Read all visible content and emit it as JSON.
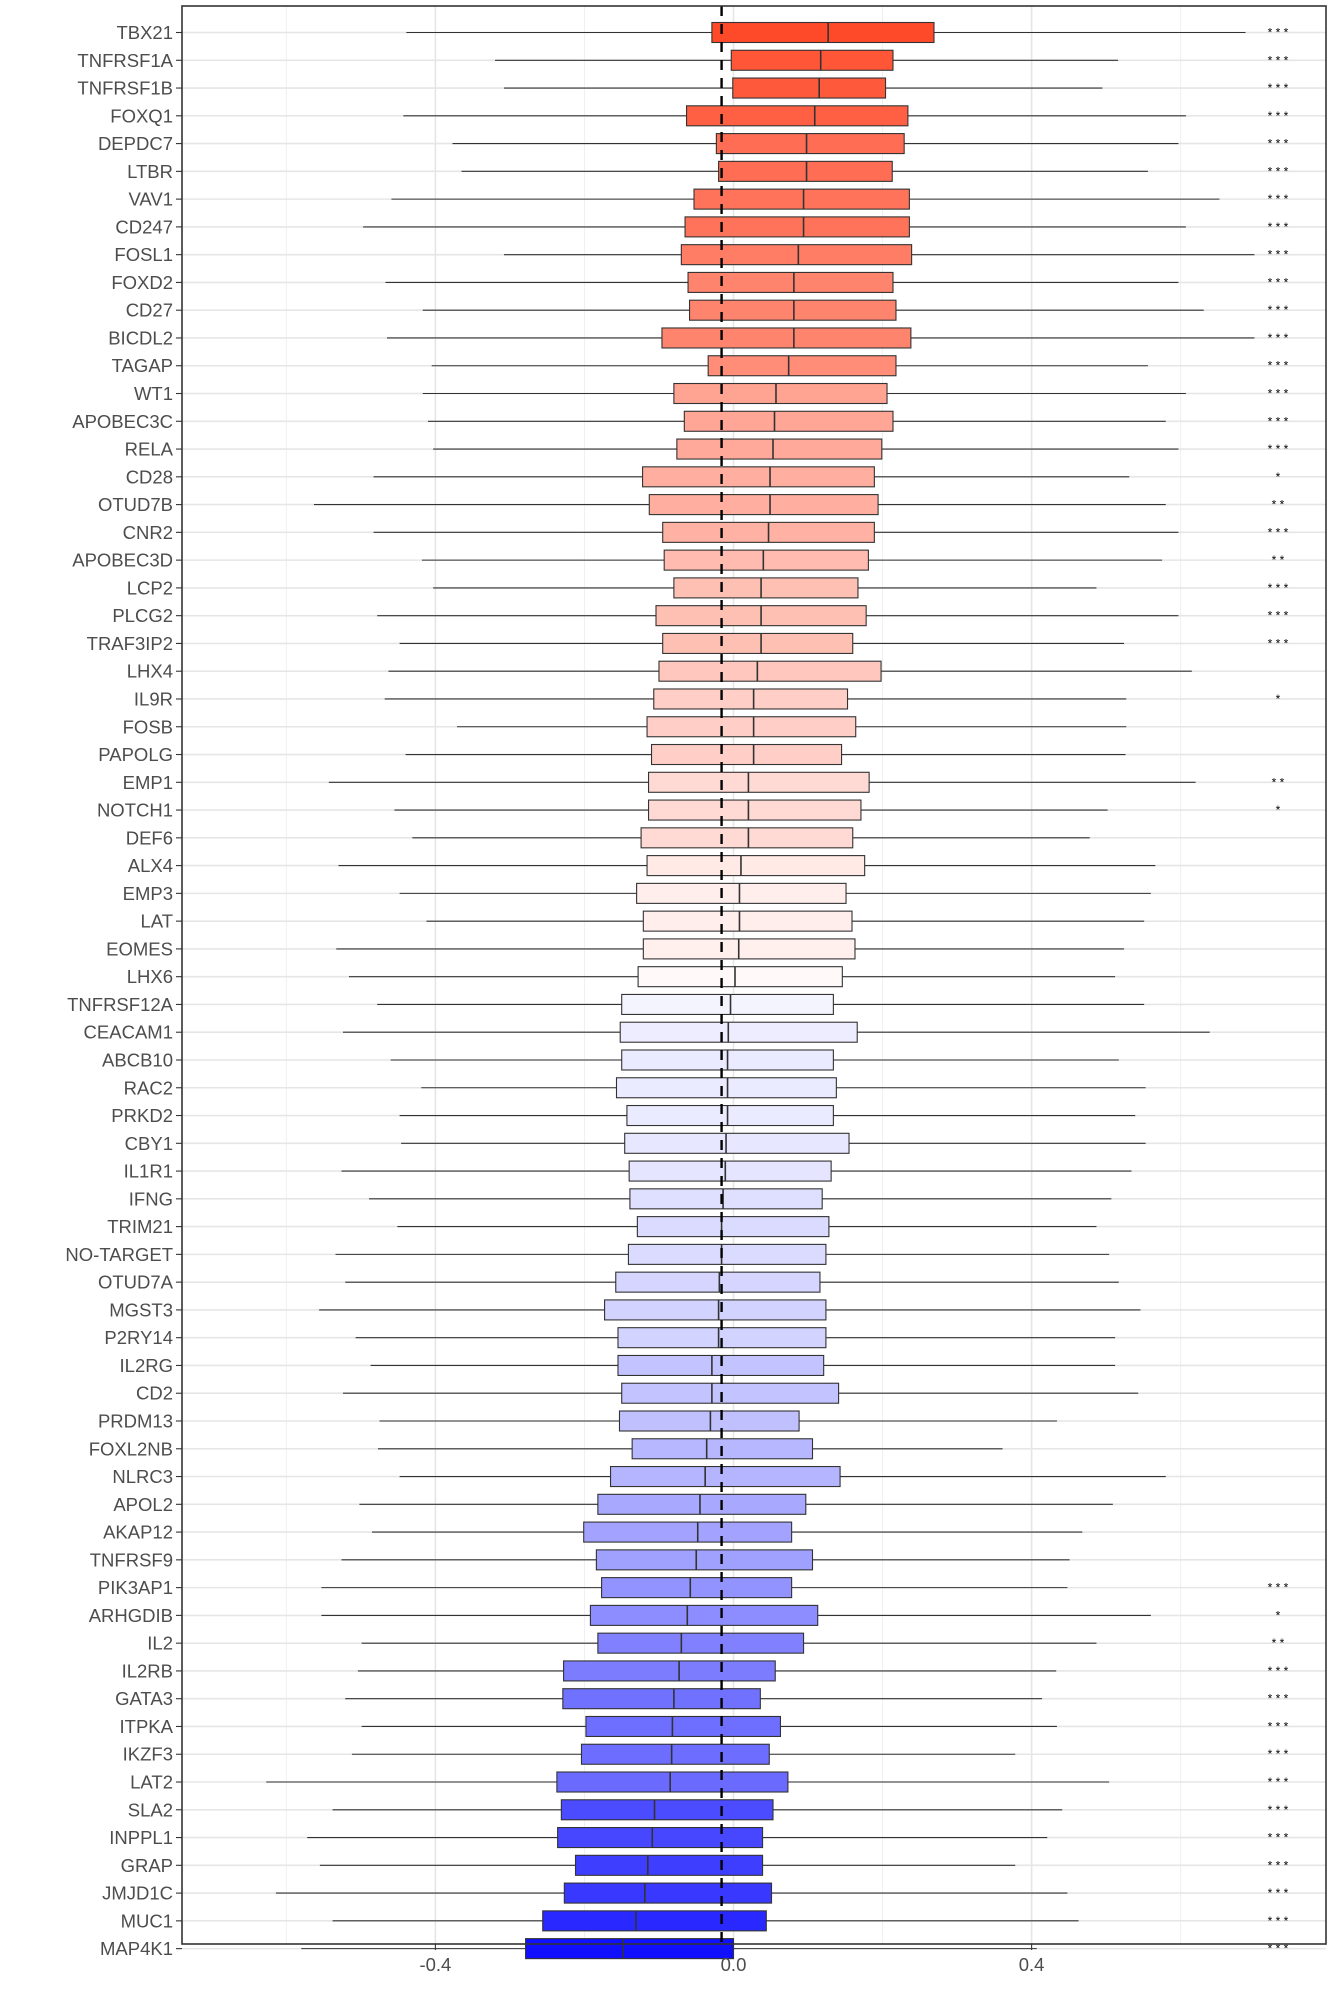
{
  "chart_data": {
    "type": "boxplot",
    "title": "",
    "xlabel": "",
    "ylabel": "",
    "xlim": [
      -0.74,
      0.795
    ],
    "xticks": [
      -0.4,
      0.0,
      0.4
    ],
    "xtick_labels": [
      "-0.4",
      "0.0",
      "0.4"
    ],
    "reference_line": -0.016,
    "grid": true,
    "color_high": "#ff4a2a",
    "color_mid": "#ffffff",
    "color_low": "#1010ff",
    "categories": [
      "TBX21",
      "TNFRSF1A",
      "TNFRSF1B",
      "FOXQ1",
      "DEPDC7",
      "LTBR",
      "VAV1",
      "CD247",
      "FOSL1",
      "FOXD2",
      "CD27",
      "BICDL2",
      "TAGAP",
      "WT1",
      "APOBEC3C",
      "RELA",
      "CD28",
      "OTUD7B",
      "CNR2",
      "APOBEC3D",
      "LCP2",
      "PLCG2",
      "TRAF3IP2",
      "LHX4",
      "IL9R",
      "FOSB",
      "PAPOLG",
      "EMP1",
      "NOTCH1",
      "DEF6",
      "ALX4",
      "EMP3",
      "LAT",
      "EOMES",
      "LHX6",
      "TNFRSF12A",
      "CEACAM1",
      "ABCB10",
      "RAC2",
      "PRKD2",
      "CBY1",
      "IL1R1",
      "IFNG",
      "TRIM21",
      "NO-TARGET",
      "OTUD7A",
      "MGST3",
      "P2RY14",
      "IL2RG",
      "CD2",
      "PRDM13",
      "FOXL2NB",
      "NLRC3",
      "APOL2",
      "AKAP12",
      "TNFRSF9",
      "PIK3AP1",
      "ARHGDIB",
      "IL2",
      "IL2RB",
      "GATA3",
      "ITPKA",
      "IKZF3",
      "LAT2",
      "SLA2",
      "INPPL1",
      "GRAP",
      "JMJD1C",
      "MUC1",
      "MAP4K1"
    ],
    "series": [
      {
        "whisker_low": -0.439,
        "q1": -0.029,
        "median": 0.127,
        "q3": 0.269,
        "whisker_high": 0.687,
        "sig": "***"
      },
      {
        "whisker_low": -0.32,
        "q1": -0.003,
        "median": 0.117,
        "q3": 0.214,
        "whisker_high": 0.516,
        "sig": "***"
      },
      {
        "whisker_low": -0.308,
        "q1": -0.001,
        "median": 0.115,
        "q3": 0.204,
        "whisker_high": 0.495,
        "sig": "***"
      },
      {
        "whisker_low": -0.443,
        "q1": -0.063,
        "median": 0.109,
        "q3": 0.234,
        "whisker_high": 0.607,
        "sig": "***"
      },
      {
        "whisker_low": -0.377,
        "q1": -0.023,
        "median": 0.098,
        "q3": 0.229,
        "whisker_high": 0.597,
        "sig": "***"
      },
      {
        "whisker_low": -0.365,
        "q1": -0.02,
        "median": 0.098,
        "q3": 0.213,
        "whisker_high": 0.556,
        "sig": "***"
      },
      {
        "whisker_low": -0.459,
        "q1": -0.053,
        "median": 0.094,
        "q3": 0.236,
        "whisker_high": 0.652,
        "sig": "***"
      },
      {
        "whisker_low": -0.497,
        "q1": -0.065,
        "median": 0.094,
        "q3": 0.236,
        "whisker_high": 0.607,
        "sig": "***"
      },
      {
        "whisker_low": -0.308,
        "q1": -0.07,
        "median": 0.087,
        "q3": 0.239,
        "whisker_high": 0.699,
        "sig": "***"
      },
      {
        "whisker_low": -0.467,
        "q1": -0.061,
        "median": 0.081,
        "q3": 0.214,
        "whisker_high": 0.597,
        "sig": "***"
      },
      {
        "whisker_low": -0.417,
        "q1": -0.059,
        "median": 0.081,
        "q3": 0.218,
        "whisker_high": 0.631,
        "sig": "***"
      },
      {
        "whisker_low": -0.465,
        "q1": -0.096,
        "median": 0.081,
        "q3": 0.238,
        "whisker_high": 0.699,
        "sig": "***"
      },
      {
        "whisker_low": -0.405,
        "q1": -0.034,
        "median": 0.074,
        "q3": 0.218,
        "whisker_high": 0.556,
        "sig": "***"
      },
      {
        "whisker_low": -0.417,
        "q1": -0.08,
        "median": 0.057,
        "q3": 0.206,
        "whisker_high": 0.607,
        "sig": "***"
      },
      {
        "whisker_low": -0.41,
        "q1": -0.066,
        "median": 0.055,
        "q3": 0.214,
        "whisker_high": 0.58,
        "sig": "***"
      },
      {
        "whisker_low": -0.403,
        "q1": -0.076,
        "median": 0.053,
        "q3": 0.199,
        "whisker_high": 0.597,
        "sig": "***"
      },
      {
        "whisker_low": -0.483,
        "q1": -0.122,
        "median": 0.049,
        "q3": 0.189,
        "whisker_high": 0.531,
        "sig": "*"
      },
      {
        "whisker_low": -0.563,
        "q1": -0.113,
        "median": 0.049,
        "q3": 0.194,
        "whisker_high": 0.58,
        "sig": "**"
      },
      {
        "whisker_low": -0.483,
        "q1": -0.095,
        "median": 0.047,
        "q3": 0.189,
        "whisker_high": 0.597,
        "sig": "***"
      },
      {
        "whisker_low": -0.418,
        "q1": -0.093,
        "median": 0.04,
        "q3": 0.181,
        "whisker_high": 0.575,
        "sig": "**"
      },
      {
        "whisker_low": -0.403,
        "q1": -0.08,
        "median": 0.037,
        "q3": 0.167,
        "whisker_high": 0.487,
        "sig": "***"
      },
      {
        "whisker_low": -0.478,
        "q1": -0.104,
        "median": 0.037,
        "q3": 0.178,
        "whisker_high": 0.597,
        "sig": "***"
      },
      {
        "whisker_low": -0.448,
        "q1": -0.095,
        "median": 0.037,
        "q3": 0.16,
        "whisker_high": 0.524,
        "sig": "***"
      },
      {
        "whisker_low": -0.463,
        "q1": -0.1,
        "median": 0.032,
        "q3": 0.198,
        "whisker_high": 0.615,
        "sig": ""
      },
      {
        "whisker_low": -0.468,
        "q1": -0.107,
        "median": 0.027,
        "q3": 0.153,
        "whisker_high": 0.527,
        "sig": "*"
      },
      {
        "whisker_low": -0.371,
        "q1": -0.116,
        "median": 0.027,
        "q3": 0.164,
        "whisker_high": 0.527,
        "sig": ""
      },
      {
        "whisker_low": -0.44,
        "q1": -0.11,
        "median": 0.027,
        "q3": 0.145,
        "whisker_high": 0.526,
        "sig": ""
      },
      {
        "whisker_low": -0.543,
        "q1": -0.114,
        "median": 0.02,
        "q3": 0.182,
        "whisker_high": 0.62,
        "sig": "**"
      },
      {
        "whisker_low": -0.455,
        "q1": -0.114,
        "median": 0.02,
        "q3": 0.171,
        "whisker_high": 0.502,
        "sig": "*"
      },
      {
        "whisker_low": -0.431,
        "q1": -0.124,
        "median": 0.02,
        "q3": 0.16,
        "whisker_high": 0.478,
        "sig": ""
      },
      {
        "whisker_low": -0.53,
        "q1": -0.116,
        "median": 0.01,
        "q3": 0.176,
        "whisker_high": 0.566,
        "sig": ""
      },
      {
        "whisker_low": -0.448,
        "q1": -0.13,
        "median": 0.008,
        "q3": 0.151,
        "whisker_high": 0.56,
        "sig": ""
      },
      {
        "whisker_low": -0.412,
        "q1": -0.121,
        "median": 0.008,
        "q3": 0.159,
        "whisker_high": 0.551,
        "sig": ""
      },
      {
        "whisker_low": -0.533,
        "q1": -0.121,
        "median": 0.007,
        "q3": 0.163,
        "whisker_high": 0.524,
        "sig": ""
      },
      {
        "whisker_low": -0.516,
        "q1": -0.128,
        "median": 0.002,
        "q3": 0.146,
        "whisker_high": 0.512,
        "sig": ""
      },
      {
        "whisker_low": -0.478,
        "q1": -0.15,
        "median": -0.004,
        "q3": 0.134,
        "whisker_high": 0.551,
        "sig": ""
      },
      {
        "whisker_low": -0.524,
        "q1": -0.152,
        "median": -0.007,
        "q3": 0.166,
        "whisker_high": 0.639,
        "sig": ""
      },
      {
        "whisker_low": -0.46,
        "q1": -0.15,
        "median": -0.008,
        "q3": 0.134,
        "whisker_high": 0.517,
        "sig": ""
      },
      {
        "whisker_low": -0.419,
        "q1": -0.157,
        "median": -0.008,
        "q3": 0.138,
        "whisker_high": 0.553,
        "sig": ""
      },
      {
        "whisker_low": -0.448,
        "q1": -0.143,
        "median": -0.008,
        "q3": 0.134,
        "whisker_high": 0.539,
        "sig": ""
      },
      {
        "whisker_low": -0.446,
        "q1": -0.146,
        "median": -0.01,
        "q3": 0.155,
        "whisker_high": 0.553,
        "sig": ""
      },
      {
        "whisker_low": -0.526,
        "q1": -0.14,
        "median": -0.011,
        "q3": 0.131,
        "whisker_high": 0.534,
        "sig": ""
      },
      {
        "whisker_low": -0.489,
        "q1": -0.139,
        "median": -0.014,
        "q3": 0.119,
        "whisker_high": 0.507,
        "sig": ""
      },
      {
        "whisker_low": -0.451,
        "q1": -0.129,
        "median": -0.016,
        "q3": 0.128,
        "whisker_high": 0.487,
        "sig": ""
      },
      {
        "whisker_low": -0.534,
        "q1": -0.141,
        "median": -0.016,
        "q3": 0.124,
        "whisker_high": 0.504,
        "sig": ""
      },
      {
        "whisker_low": -0.521,
        "q1": -0.158,
        "median": -0.019,
        "q3": 0.116,
        "whisker_high": 0.517,
        "sig": ""
      },
      {
        "whisker_low": -0.556,
        "q1": -0.173,
        "median": -0.02,
        "q3": 0.124,
        "whisker_high": 0.546,
        "sig": ""
      },
      {
        "whisker_low": -0.507,
        "q1": -0.155,
        "median": -0.02,
        "q3": 0.124,
        "whisker_high": 0.512,
        "sig": ""
      },
      {
        "whisker_low": -0.487,
        "q1": -0.155,
        "median": -0.029,
        "q3": 0.121,
        "whisker_high": 0.512,
        "sig": ""
      },
      {
        "whisker_low": -0.524,
        "q1": -0.15,
        "median": -0.029,
        "q3": 0.141,
        "whisker_high": 0.543,
        "sig": ""
      },
      {
        "whisker_low": -0.475,
        "q1": -0.153,
        "median": -0.031,
        "q3": 0.088,
        "whisker_high": 0.434,
        "sig": ""
      },
      {
        "whisker_low": -0.477,
        "q1": -0.136,
        "median": -0.036,
        "q3": 0.106,
        "whisker_high": 0.361,
        "sig": ""
      },
      {
        "whisker_low": -0.448,
        "q1": -0.165,
        "median": -0.038,
        "q3": 0.143,
        "whisker_high": 0.58,
        "sig": ""
      },
      {
        "whisker_low": -0.502,
        "q1": -0.182,
        "median": -0.045,
        "q3": 0.097,
        "whisker_high": 0.509,
        "sig": ""
      },
      {
        "whisker_low": -0.485,
        "q1": -0.201,
        "median": -0.048,
        "q3": 0.078,
        "whisker_high": 0.468,
        "sig": ""
      },
      {
        "whisker_low": -0.526,
        "q1": -0.184,
        "median": -0.05,
        "q3": 0.106,
        "whisker_high": 0.451,
        "sig": ""
      },
      {
        "whisker_low": -0.553,
        "q1": -0.177,
        "median": -0.058,
        "q3": 0.078,
        "whisker_high": 0.448,
        "sig": "***"
      },
      {
        "whisker_low": -0.553,
        "q1": -0.192,
        "median": -0.062,
        "q3": 0.113,
        "whisker_high": 0.56,
        "sig": "*"
      },
      {
        "whisker_low": -0.499,
        "q1": -0.182,
        "median": -0.07,
        "q3": 0.094,
        "whisker_high": 0.487,
        "sig": "**"
      },
      {
        "whisker_low": -0.504,
        "q1": -0.228,
        "median": -0.073,
        "q3": 0.056,
        "whisker_high": 0.433,
        "sig": "***"
      },
      {
        "whisker_low": -0.521,
        "q1": -0.229,
        "median": -0.08,
        "q3": 0.036,
        "whisker_high": 0.414,
        "sig": "***"
      },
      {
        "whisker_low": -0.499,
        "q1": -0.198,
        "median": -0.082,
        "q3": 0.063,
        "whisker_high": 0.434,
        "sig": "***"
      },
      {
        "whisker_low": -0.512,
        "q1": -0.204,
        "median": -0.083,
        "q3": 0.048,
        "whisker_high": 0.378,
        "sig": "***"
      },
      {
        "whisker_low": -0.627,
        "q1": -0.237,
        "median": -0.085,
        "q3": 0.073,
        "whisker_high": 0.504,
        "sig": "***"
      },
      {
        "whisker_low": -0.538,
        "q1": -0.231,
        "median": -0.106,
        "q3": 0.053,
        "whisker_high": 0.441,
        "sig": "***"
      },
      {
        "whisker_low": -0.572,
        "q1": -0.236,
        "median": -0.109,
        "q3": 0.039,
        "whisker_high": 0.421,
        "sig": "***"
      },
      {
        "whisker_low": -0.555,
        "q1": -0.212,
        "median": -0.115,
        "q3": 0.039,
        "whisker_high": 0.378,
        "sig": "***"
      },
      {
        "whisker_low": -0.614,
        "q1": -0.227,
        "median": -0.119,
        "q3": 0.051,
        "whisker_high": 0.448,
        "sig": "***"
      },
      {
        "whisker_low": -0.538,
        "q1": -0.256,
        "median": -0.131,
        "q3": 0.044,
        "whisker_high": 0.463,
        "sig": "***"
      },
      {
        "whisker_low": -0.58,
        "q1": -0.279,
        "median": -0.148,
        "q3": 0.0,
        "whisker_high": 0.407,
        "sig": "***"
      }
    ]
  }
}
